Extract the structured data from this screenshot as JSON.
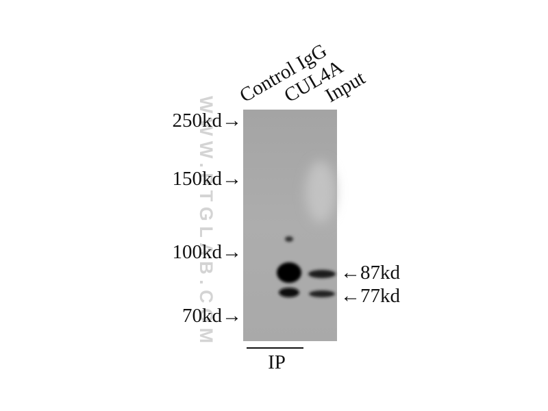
{
  "lanes": [
    "Control IgG",
    "CUL4A",
    "Input"
  ],
  "markers": [
    "250kd→",
    "150kd→",
    "100kd→",
    "70kd→"
  ],
  "bands": [
    "←87kd",
    "←77kd"
  ],
  "group_label": "IP",
  "watermark": "WWW.PTGLAB.COM"
}
